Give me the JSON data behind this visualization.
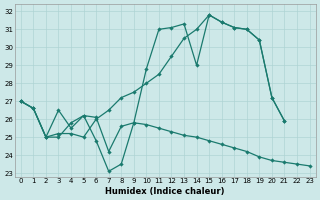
{
  "xlabel": "Humidex (Indice chaleur)",
  "bg_color": "#cde8e8",
  "line_color": "#1a7a6e",
  "grid_color": "#afd4d4",
  "xlim": [
    -0.5,
    23.5
  ],
  "ylim": [
    22.8,
    32.4
  ],
  "yticks": [
    23,
    24,
    25,
    26,
    27,
    28,
    29,
    30,
    31,
    32
  ],
  "line1_x": [
    0,
    1,
    2,
    3,
    4,
    5,
    6,
    7,
    8,
    9,
    10,
    11,
    12,
    13,
    14,
    15,
    16,
    17,
    18,
    19,
    20,
    21
  ],
  "line1_y": [
    27.0,
    26.6,
    25.0,
    26.5,
    25.5,
    26.2,
    24.8,
    23.1,
    23.5,
    25.8,
    28.8,
    31.0,
    31.1,
    31.3,
    29.0,
    31.8,
    31.4,
    31.1,
    31.0,
    30.4,
    27.2,
    25.9
  ],
  "line2_x": [
    0,
    1,
    2,
    3,
    4,
    5,
    6,
    7,
    8,
    9,
    10,
    11,
    12,
    13,
    14,
    15,
    16,
    17,
    18,
    19,
    20,
    21
  ],
  "line2_y": [
    27.0,
    26.6,
    25.0,
    25.2,
    25.2,
    25.0,
    26.0,
    26.5,
    27.2,
    27.5,
    28.0,
    28.5,
    29.5,
    30.5,
    31.0,
    31.8,
    31.4,
    31.1,
    31.0,
    30.4,
    27.2,
    25.9
  ],
  "line3_x": [
    0,
    1,
    2,
    3,
    4,
    5,
    6,
    7,
    8,
    9,
    10,
    11,
    12,
    13,
    14,
    15,
    16,
    17,
    18,
    19,
    20,
    21,
    22,
    23
  ],
  "line3_y": [
    27.0,
    26.6,
    25.0,
    25.0,
    25.8,
    26.2,
    26.1,
    24.2,
    25.6,
    25.8,
    25.7,
    25.5,
    25.3,
    25.1,
    25.0,
    24.8,
    24.6,
    24.4,
    24.2,
    23.9,
    23.7,
    23.6,
    23.5,
    23.4
  ]
}
